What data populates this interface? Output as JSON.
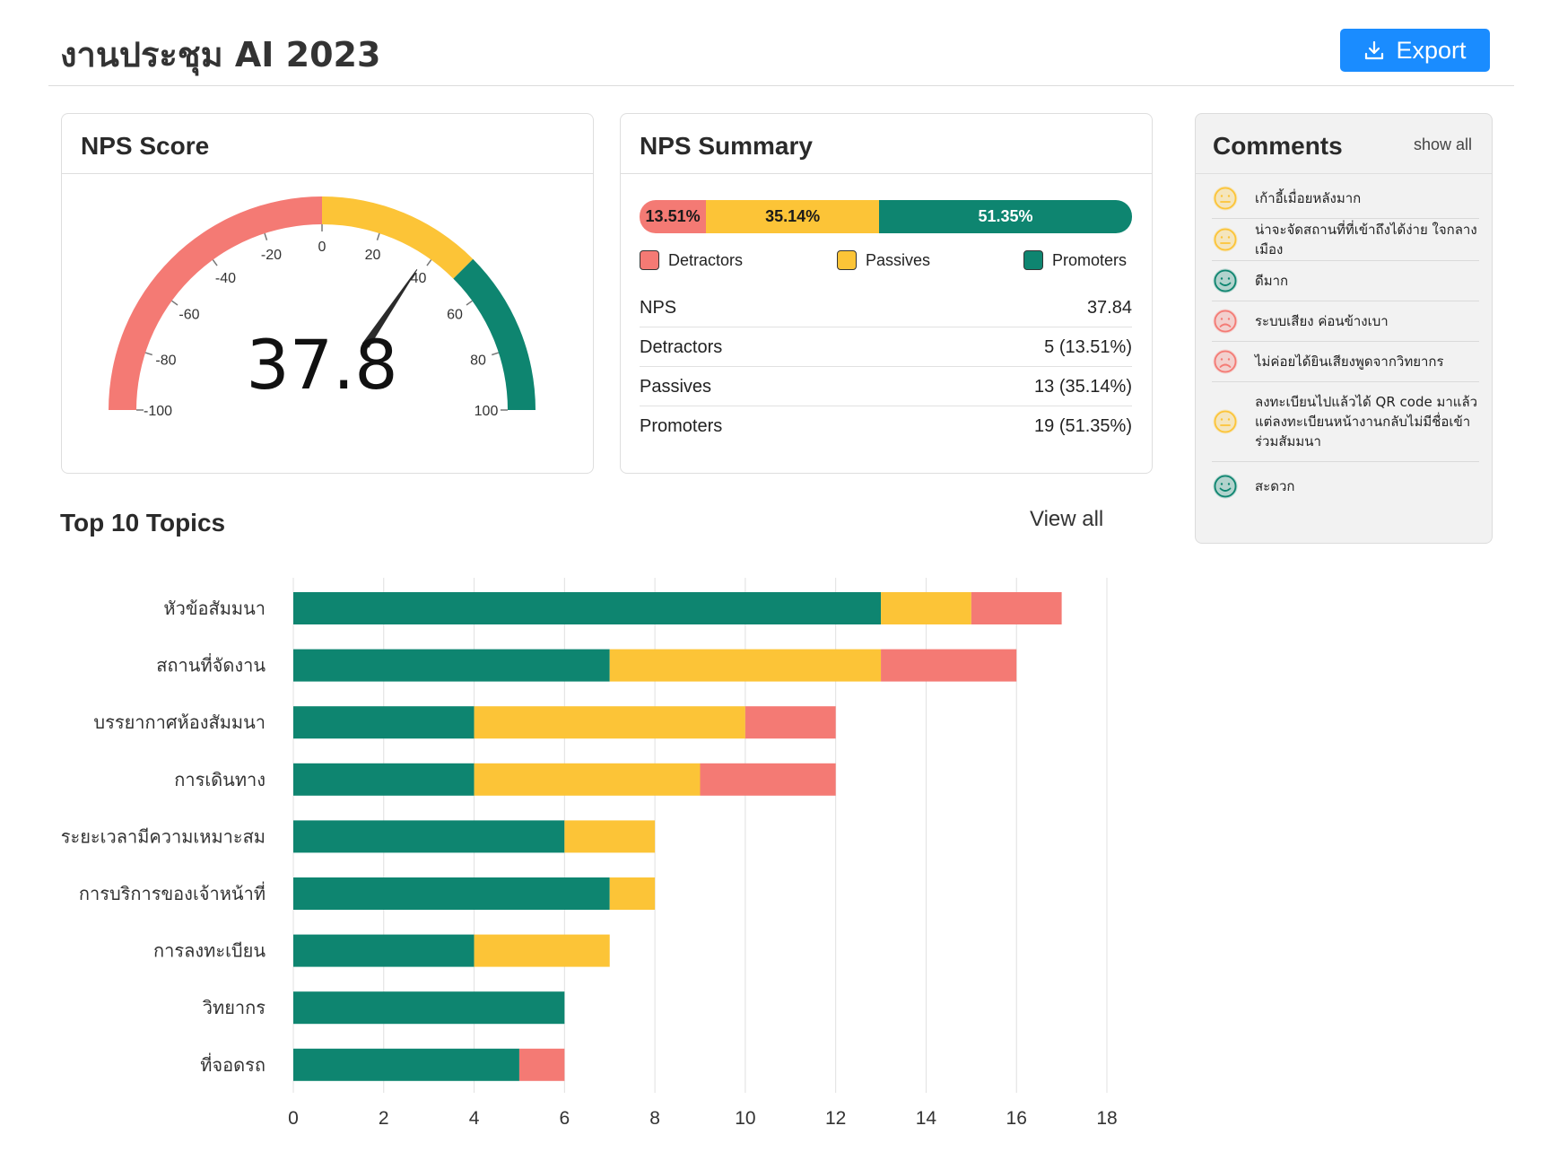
{
  "header": {
    "title": "งานประชุม AI 2023",
    "export_label": "Export",
    "export_icon": "download-icon"
  },
  "nps_score": {
    "title": "NPS Score",
    "value_label": "37.8",
    "value": 37.84,
    "min": -100,
    "max": 100,
    "ticks": [
      "-100",
      "-80",
      "-60",
      "-40",
      "-20",
      "0",
      "20",
      "40",
      "60",
      "80",
      "100"
    ],
    "zones": [
      {
        "name": "detractor",
        "from": -100,
        "to": 0,
        "color": "#f47a74"
      },
      {
        "name": "passive",
        "from": 0,
        "to": 50,
        "color": "#fcc437"
      },
      {
        "name": "promoter",
        "from": 50,
        "to": 100,
        "color": "#0e8570"
      }
    ]
  },
  "nps_summary": {
    "title": "NPS Summary",
    "segments": [
      {
        "label": "13.51%",
        "share": 13.51,
        "color": "#f47a74"
      },
      {
        "label": "35.14%",
        "share": 35.14,
        "color": "#fcc437"
      },
      {
        "label": "51.35%",
        "share": 51.35,
        "color": "#0e8570"
      }
    ],
    "legend": [
      {
        "label": "Detractors",
        "color": "#f47a74"
      },
      {
        "label": "Passives",
        "color": "#fcc437"
      },
      {
        "label": "Promoters",
        "color": "#0e8570"
      }
    ],
    "rows": [
      {
        "label": "NPS",
        "value": "37.84"
      },
      {
        "label": "Detractors",
        "value": "5 (13.51%)"
      },
      {
        "label": "Passives",
        "value": "13 (35.14%)"
      },
      {
        "label": "Promoters",
        "value": "19 (51.35%)"
      }
    ]
  },
  "comments": {
    "title": "Comments",
    "show_all_label": "show all",
    "items": [
      {
        "sentiment": "neutral",
        "icon": "neutral-face-icon",
        "color": "#fcc437",
        "text": "เก้าอี้เมื่อยหลังมาก"
      },
      {
        "sentiment": "neutral",
        "icon": "neutral-face-icon",
        "color": "#fcc437",
        "text": "น่าจะจัดสถานที่ที่เข้าถึงได้ง่าย ใจกลางเมือง"
      },
      {
        "sentiment": "positive",
        "icon": "smile-face-icon",
        "color": "#0e8570",
        "text": "ดีมาก"
      },
      {
        "sentiment": "negative",
        "icon": "sad-face-icon",
        "color": "#f47a74",
        "text": "ระบบเสียง ค่อนข้างเบา"
      },
      {
        "sentiment": "negative",
        "icon": "sad-face-icon",
        "color": "#f47a74",
        "text": "ไม่ค่อยได้ยินเสียงพูดจากวิทยากร"
      },
      {
        "sentiment": "neutral",
        "icon": "neutral-face-icon",
        "color": "#fcc437",
        "text": "ลงทะเบียนไปแล้วได้ QR code มาแล้ว แต่ลงทะเบียนหน้างานกลับไม่มีชื่อเข้าร่วมสัมมนา"
      },
      {
        "sentiment": "positive",
        "icon": "smile-face-icon",
        "color": "#0e8570",
        "text": "สะดวก"
      }
    ]
  },
  "topics": {
    "title": "Top 10 Topics",
    "view_all_label": "View all"
  },
  "chart_data": {
    "type": "bar",
    "orientation": "horizontal",
    "stacked": true,
    "categories": [
      "หัวข้อสัมมนา",
      "สถานที่จัดงาน",
      "บรรยากาศห้องสัมมนา",
      "การเดินทาง",
      "ระยะเวลามีความเหมาะสม",
      "การบริการของเจ้าหน้าที่",
      "การลงทะเบียน",
      "วิทยากร",
      "ที่จอดรถ"
    ],
    "series": [
      {
        "key": "promoters",
        "color": "#0e8570",
        "values": [
          13,
          7,
          4,
          4,
          6,
          7,
          4,
          6,
          5
        ]
      },
      {
        "key": "passives",
        "color": "#fcc437",
        "values": [
          2,
          6,
          6,
          5,
          2,
          1,
          3,
          0,
          0
        ]
      },
      {
        "key": "detractors",
        "color": "#f47a74",
        "values": [
          2,
          3,
          2,
          3,
          0,
          0,
          0,
          0,
          1
        ]
      }
    ],
    "xlim": [
      0,
      18
    ],
    "xticks": [
      0,
      2,
      4,
      6,
      8,
      10,
      12,
      14,
      16,
      18
    ],
    "grid": true,
    "legend": "none"
  }
}
